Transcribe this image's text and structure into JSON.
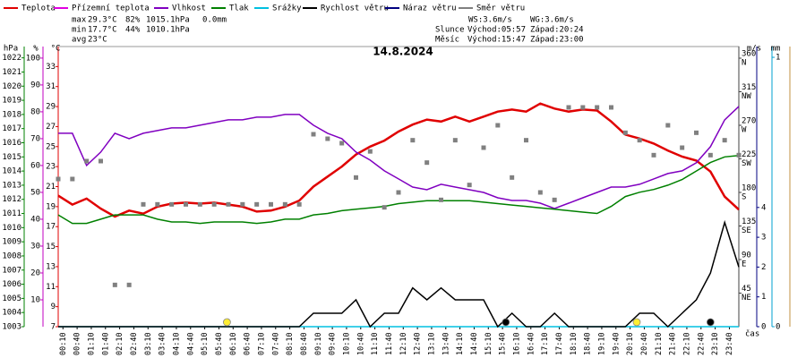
{
  "chart_data": {
    "type": "line",
    "title": "14.8.2024",
    "x_label": "čas",
    "xlim": [
      0,
      1440
    ],
    "xticks": [
      {
        "value": 10,
        "label": "00:10"
      },
      {
        "value": 40,
        "label": "00:40"
      },
      {
        "value": 70,
        "label": "01:10"
      },
      {
        "value": 100,
        "label": "01:40"
      },
      {
        "value": 130,
        "label": "02:10"
      },
      {
        "value": 160,
        "label": "02:40"
      },
      {
        "value": 190,
        "label": "03:10"
      },
      {
        "value": 220,
        "label": "03:40"
      },
      {
        "value": 250,
        "label": "04:10"
      },
      {
        "value": 280,
        "label": "04:40"
      },
      {
        "value": 310,
        "label": "05:10"
      },
      {
        "value": 340,
        "label": "05:40"
      },
      {
        "value": 370,
        "label": "06:10"
      },
      {
        "value": 400,
        "label": "06:40"
      },
      {
        "value": 430,
        "label": "07:10"
      },
      {
        "value": 460,
        "label": "07:40"
      },
      {
        "value": 490,
        "label": "08:10"
      },
      {
        "value": 520,
        "label": "08:40"
      },
      {
        "value": 550,
        "label": "09:10"
      },
      {
        "value": 580,
        "label": "09:40"
      },
      {
        "value": 610,
        "label": "10:10"
      },
      {
        "value": 640,
        "label": "10:40"
      },
      {
        "value": 670,
        "label": "11:10"
      },
      {
        "value": 700,
        "label": "11:40"
      },
      {
        "value": 730,
        "label": "12:10"
      },
      {
        "value": 760,
        "label": "12:40"
      },
      {
        "value": 790,
        "label": "13:10"
      },
      {
        "value": 820,
        "label": "13:40"
      },
      {
        "value": 850,
        "label": "14:10"
      },
      {
        "value": 880,
        "label": "14:40"
      },
      {
        "value": 910,
        "label": "15:10"
      },
      {
        "value": 940,
        "label": "15:40"
      },
      {
        "value": 970,
        "label": "16:10"
      },
      {
        "value": 1000,
        "label": "16:40"
      },
      {
        "value": 1030,
        "label": "17:10"
      },
      {
        "value": 1060,
        "label": "17:40"
      },
      {
        "value": 1090,
        "label": "18:10"
      },
      {
        "value": 1120,
        "label": "18:40"
      },
      {
        "value": 1150,
        "label": "19:10"
      },
      {
        "value": 1180,
        "label": "19:40"
      },
      {
        "value": 1210,
        "label": "20:10"
      },
      {
        "value": 1240,
        "label": "20:40"
      },
      {
        "value": 1270,
        "label": "21:10"
      },
      {
        "value": 1300,
        "label": "21:40"
      },
      {
        "value": 1330,
        "label": "22:10"
      },
      {
        "value": 1360,
        "label": "22:40"
      },
      {
        "value": 1390,
        "label": "23:10"
      },
      {
        "value": 1420,
        "label": "23:40"
      }
    ],
    "x": [
      0,
      30,
      60,
      90,
      120,
      150,
      180,
      210,
      240,
      270,
      300,
      330,
      360,
      390,
      420,
      450,
      480,
      510,
      540,
      570,
      600,
      630,
      660,
      690,
      720,
      750,
      780,
      810,
      840,
      870,
      900,
      930,
      960,
      990,
      1020,
      1050,
      1080,
      1110,
      1140,
      1170,
      1200,
      1230,
      1260,
      1290,
      1320,
      1350,
      1380,
      1410,
      1440
    ],
    "axes": {
      "temp": {
        "unit": "°C",
        "color": "#e00000",
        "lim": [
          7,
          35
        ],
        "ticks": [
          7,
          9,
          11,
          13,
          15,
          17,
          19,
          21,
          23,
          25,
          27,
          29,
          31,
          33
        ]
      },
      "hum": {
        "unit": "%",
        "color": "#c000c0",
        "lim": [
          0,
          104.3
        ],
        "ticks": [
          10,
          20,
          30,
          40,
          50,
          60,
          70,
          80,
          90,
          100
        ]
      },
      "press": {
        "unit": "hPa",
        "color": "#008000",
        "lim": [
          1003,
          1022.8
        ],
        "ticks": [
          1003,
          1004,
          1005,
          1006,
          1007,
          1008,
          1009,
          1010,
          1011,
          1012,
          1013,
          1014,
          1015,
          1016,
          1017,
          1018,
          1019,
          1020,
          1021,
          1022
        ]
      },
      "dir": {
        "color": "#404040",
        "lim": [
          0,
          375.6
        ],
        "ticks": [
          45,
          90,
          135,
          180,
          225,
          270,
          315,
          360
        ],
        "compass": [
          "NE",
          "E",
          "SE",
          "S",
          "SW",
          "W",
          "NW",
          "N"
        ]
      },
      "wind": {
        "unit": "m/s",
        "color": "#000080",
        "lim": [
          0,
          9.4
        ],
        "ticks": [
          0,
          1,
          2,
          3,
          4
        ]
      },
      "rain": {
        "unit": "mm",
        "color": "#00a0d0",
        "lim": [
          0,
          1.04
        ],
        "ticks": [
          0,
          1
        ]
      }
    },
    "series": [
      {
        "name": "Teplota",
        "color": "#e00000",
        "axis": "temp",
        "values": [
          20.1,
          19.2,
          19.8,
          18.8,
          18.0,
          18.6,
          18.3,
          19.0,
          19.3,
          19.4,
          19.3,
          19.4,
          19.2,
          19.0,
          18.5,
          18.6,
          19.0,
          19.6,
          21.0,
          22.0,
          23.0,
          24.2,
          25.0,
          25.6,
          26.5,
          27.2,
          27.7,
          27.5,
          28.0,
          27.5,
          28.0,
          28.5,
          28.7,
          28.5,
          29.3,
          28.8,
          28.5,
          28.7,
          28.6,
          27.5,
          26.2,
          25.8,
          25.3,
          24.6,
          24.0,
          23.6,
          22.5,
          20.0,
          18.7
        ]
      },
      {
        "name": "Přízemní teplota",
        "color": "#e000e0",
        "axis": "temp",
        "values": [
          null,
          null,
          null,
          null,
          null,
          null,
          null,
          null,
          null,
          null,
          null,
          null,
          null,
          null,
          null,
          null,
          null,
          null,
          null,
          null,
          null,
          null,
          null,
          null,
          null,
          null,
          null,
          null,
          null,
          null,
          null,
          null,
          null,
          null,
          null,
          null,
          null,
          null,
          null,
          null,
          null,
          null,
          null,
          null,
          null,
          null,
          null,
          null,
          null
        ]
      },
      {
        "name": "Vlhkost",
        "color": "#8000c0",
        "axis": "hum",
        "values": [
          72,
          72,
          60,
          65,
          72,
          70,
          72,
          73,
          74,
          74,
          75,
          76,
          77,
          77,
          78,
          78,
          79,
          79,
          75,
          72,
          70,
          65,
          62,
          58,
          55,
          52,
          51,
          53,
          52,
          51,
          50,
          48,
          47,
          47,
          46,
          44,
          46,
          48,
          50,
          52,
          52,
          53,
          55,
          57,
          58,
          61,
          67,
          77,
          82
        ]
      },
      {
        "name": "Tlak",
        "color": "#008000",
        "axis": "press",
        "values": [
          1010.9,
          1010.3,
          1010.3,
          1010.6,
          1010.9,
          1010.9,
          1010.9,
          1010.6,
          1010.4,
          1010.4,
          1010.3,
          1010.4,
          1010.4,
          1010.4,
          1010.3,
          1010.4,
          1010.6,
          1010.6,
          1010.9,
          1011.0,
          1011.2,
          1011.3,
          1011.4,
          1011.5,
          1011.7,
          1011.8,
          1011.9,
          1011.9,
          1011.9,
          1011.9,
          1011.8,
          1011.7,
          1011.6,
          1011.5,
          1011.4,
          1011.3,
          1011.2,
          1011.1,
          1011.0,
          1011.5,
          1012.2,
          1012.5,
          1012.7,
          1013.0,
          1013.4,
          1014.0,
          1014.6,
          1015.0,
          1015.1
        ]
      },
      {
        "name": "Srážky",
        "color": "#00c0e0",
        "axis": "rain",
        "values": [
          0,
          0,
          0,
          0,
          0,
          0,
          0,
          0,
          0,
          0,
          0,
          0,
          0,
          0,
          0,
          0,
          0,
          0,
          0,
          0,
          0,
          0,
          0,
          0,
          0,
          0,
          0,
          0,
          0,
          0,
          0,
          0,
          0,
          0,
          0,
          0,
          0,
          0,
          0,
          0,
          0,
          0,
          0,
          0,
          0,
          0,
          0,
          0,
          0
        ]
      },
      {
        "name": "Rychlost větru",
        "color": "#000000",
        "axis": "wind",
        "values": [
          0,
          0,
          0,
          0,
          0,
          0,
          0,
          0,
          0,
          0,
          0,
          0,
          0,
          0,
          0,
          0,
          0,
          0,
          0.45,
          0.45,
          0.45,
          0.9,
          0,
          0.45,
          0.45,
          1.3,
          0.9,
          1.3,
          0.9,
          0.9,
          0.9,
          0,
          0.45,
          0,
          0,
          0.45,
          0,
          0,
          0,
          0,
          0,
          0.45,
          0.45,
          0,
          0.45,
          0.9,
          1.8,
          3.5,
          2.0
        ]
      },
      {
        "name": "Náraz větru",
        "color": "#000080",
        "axis": "wind",
        "values": [
          null,
          null,
          null,
          null,
          null,
          null,
          null,
          null,
          null,
          null,
          null,
          null,
          null,
          null,
          null,
          null,
          null,
          null,
          null,
          null,
          null,
          null,
          null,
          null,
          null,
          null,
          null,
          null,
          null,
          null,
          null,
          null,
          null,
          null,
          null,
          null,
          null,
          null,
          null,
          null,
          null,
          null,
          null,
          null,
          null,
          null,
          null,
          null,
          null
        ]
      },
      {
        "name": "Směr větru",
        "color": "#808080",
        "axis": "dir",
        "points": true,
        "values": [
          198,
          198,
          222,
          222,
          56,
          56,
          164,
          164,
          164,
          164,
          164,
          164,
          164,
          164,
          164,
          164,
          164,
          164,
          258,
          252,
          246,
          200,
          235,
          160,
          180,
          250,
          220,
          170,
          250,
          190,
          240,
          270,
          200,
          250,
          180,
          170,
          294,
          294,
          294,
          294,
          260,
          250,
          230,
          270,
          240,
          260,
          230,
          250,
          230
        ]
      }
    ],
    "stats": [
      {
        "label": "max",
        "temp": "29.3°C",
        "hum": "82%",
        "press": "1015.1hPa",
        "rain": "0.0mm"
      },
      {
        "label": "min",
        "temp": "17.7°C",
        "hum": "44%",
        "press": "1010.1hPa"
      },
      {
        "label": "avg",
        "temp": "23°C"
      }
    ],
    "wind_info": {
      "ws": "WS:3.6m/s",
      "wg": "WG:3.6m/s"
    },
    "sun": {
      "label": "Slunce",
      "rise": "Východ:05:57",
      "set": "Západ:20:24"
    },
    "moon": {
      "label": "Měsíc",
      "rise": "Východ:15:47",
      "set": "Západ:23:00"
    }
  }
}
